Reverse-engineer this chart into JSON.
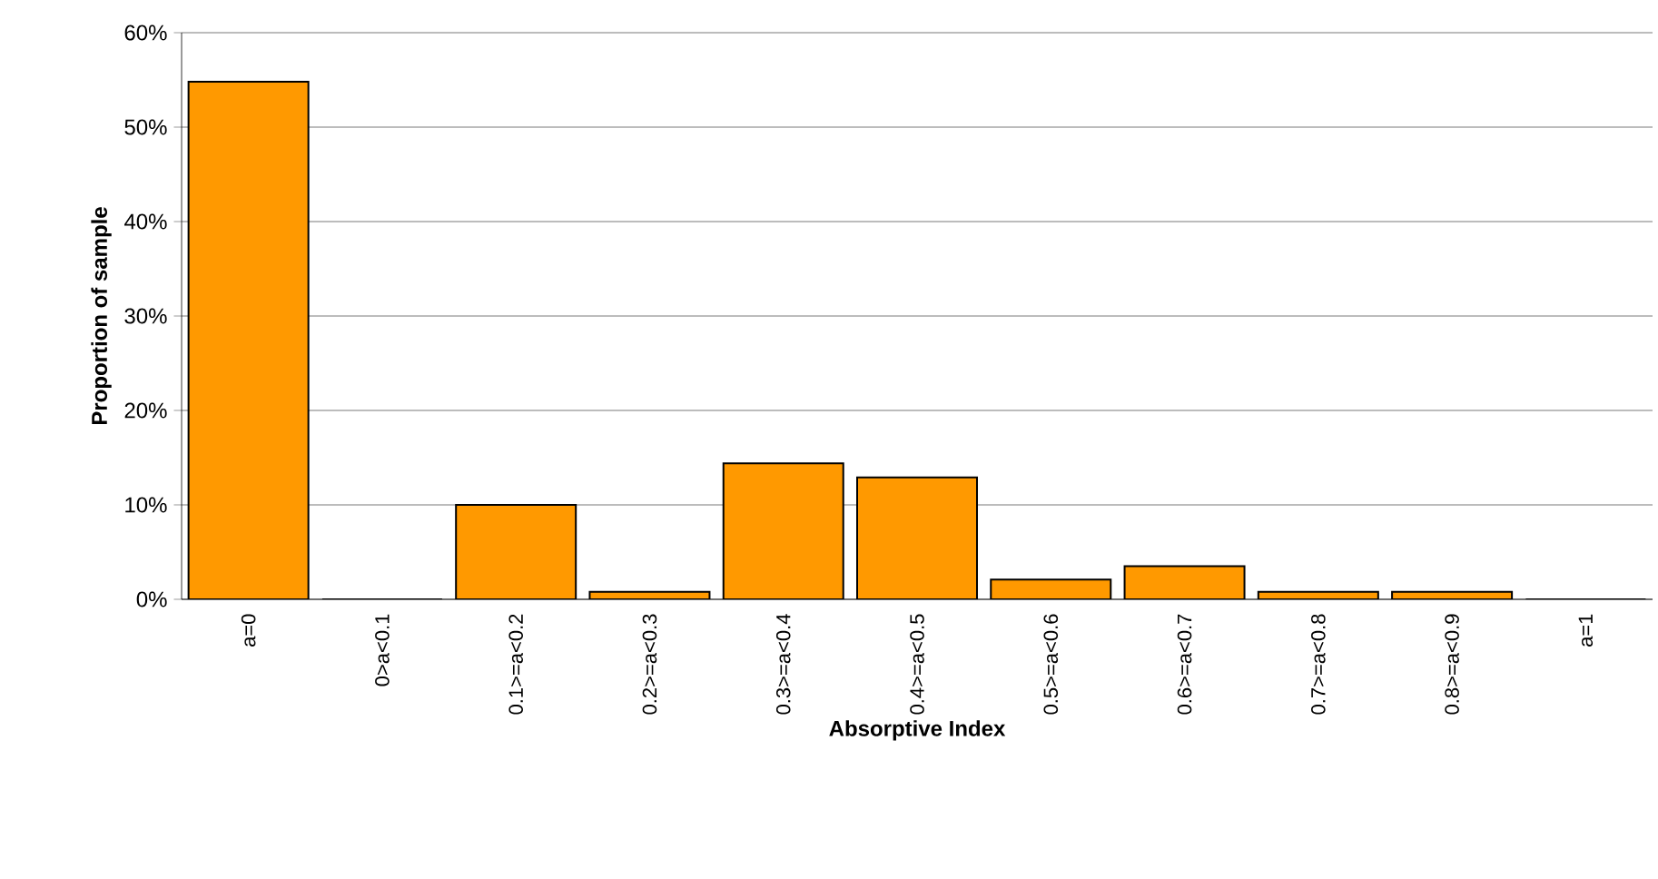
{
  "chart_data": {
    "type": "bar",
    "xlabel": "Absorptive Index",
    "ylabel": "Proportion of sample",
    "categories": [
      "a=0",
      "0>a<0.1",
      "0.1>=a<0.2",
      "0.2>=a<0.3",
      "0.3>=a<0.4",
      "0.4>=a<0.5",
      "0.5>=a<0.6",
      "0.6>=a<0.7",
      "0.7>=a<0.8",
      "0.8>=a<0.9",
      "a=1"
    ],
    "values": [
      54.8,
      0,
      10,
      0.8,
      14.4,
      12.9,
      2.1,
      3.5,
      0.8,
      0.8,
      0
    ],
    "color": "#ff9900",
    "ylim": [
      0,
      60
    ],
    "yticks": [
      {
        "value": 0,
        "label": "0%"
      },
      {
        "value": 10,
        "label": "10%"
      },
      {
        "value": 20,
        "label": "20%"
      },
      {
        "value": 30,
        "label": "30%"
      },
      {
        "value": 40,
        "label": "40%"
      },
      {
        "value": 50,
        "label": "50%"
      },
      {
        "value": 60,
        "label": "60%"
      }
    ],
    "grid": "y"
  }
}
